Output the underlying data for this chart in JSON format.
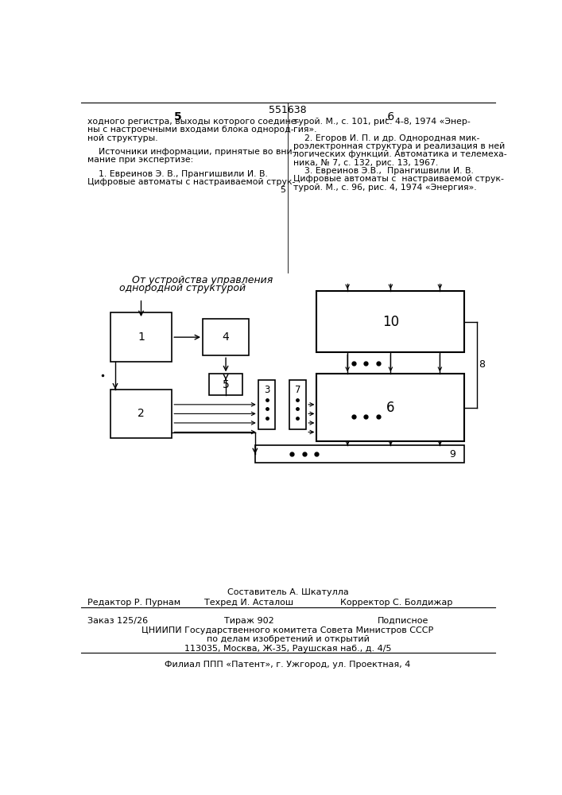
{
  "patent_number": "551638",
  "page_left": "5",
  "page_right": "6",
  "text_left_col": [
    "ходного регистра, выходы которого соедине-",
    "ны с настроечными входами блока однород-",
    "ной структуры.",
    "",
    "    Источники информации, принятые во вни-",
    "мание при экспертизе:",
    "",
    "    1. Евреинов Э. В., Прангишвили И. В.",
    "Цифровые автоматы с настраиваемой струк-"
  ],
  "text_right_col": [
    "турой. М., с. 101, рис. 4-8, 1974 «Энер-",
    "гия».",
    "    2. Егоров И. П. и др. Однородная мик-",
    "роэлектронная структура и реализация в ней",
    "логических функций. Автоматика и телемеха-",
    "ника, № 7, с. 132, рис. 13, 1967.",
    "    3. Евреинов Э.В.,  Прангишвили И. В.",
    "Цифровые автоматы с  настраиваемой струк-",
    "турой. М., с. 96, рис. 4, 1974 «Энергия»."
  ],
  "diagram_label": "От устройства управления",
  "diagram_label2": "однородной структурой",
  "footer_sestavitel": "Составитель А. Шкатулла",
  "footer_editor": "Редактор Р. Пурнам",
  "footer_techred": "Техред И. Асталош",
  "footer_corrector": "Корректор С. Болдижар",
  "footer_order": "Заказ 125/26",
  "footer_tirazh": "Тираж 902",
  "footer_podpisnoe": "Подписное",
  "footer_cniipи": "ЦНИИПИ Государственного комитета Совета Министров СССР",
  "footer_delam": "по делам изобретений и открытий",
  "footer_address": "113035, Москва, Ж-35, Раушская наб., д. 4/5",
  "footer_filial": "Филиал ППП «Патент», г. Ужгород, ул. Проектная, 4",
  "bg_color": "#ffffff",
  "text_color": "#000000"
}
